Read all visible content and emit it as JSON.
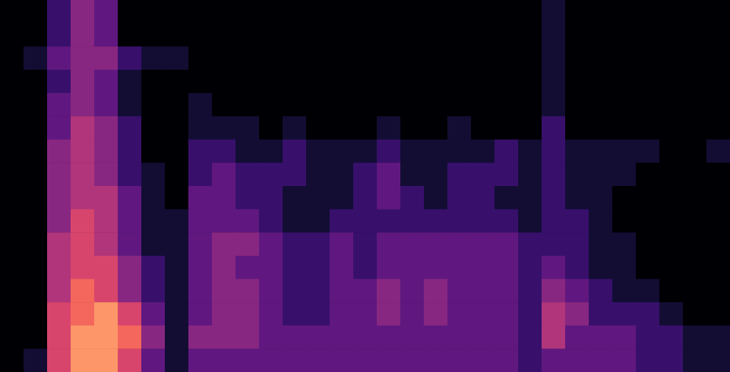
{
  "chart_data": {
    "type": "heatmap",
    "color": "magma",
    "tick_labels": false,
    "cells": [
      [
        0,
        0,
        2,
        4,
        3,
        0,
        0,
        0,
        0,
        0,
        0,
        0,
        0,
        0,
        0,
        0,
        0,
        0,
        0,
        0,
        0,
        0,
        0,
        1,
        0,
        0,
        0,
        0,
        0,
        0,
        0
      ],
      [
        0,
        0,
        2,
        4,
        3,
        0,
        0,
        0,
        0,
        0,
        0,
        0,
        0,
        0,
        0,
        0,
        0,
        0,
        0,
        0,
        0,
        0,
        0,
        1,
        0,
        0,
        0,
        0,
        0,
        0,
        0
      ],
      [
        0,
        1,
        3,
        4,
        4,
        2,
        1,
        1,
        0,
        0,
        0,
        0,
        0,
        0,
        0,
        0,
        0,
        0,
        0,
        0,
        0,
        0,
        0,
        1,
        0,
        0,
        0,
        0,
        0,
        0,
        0
      ],
      [
        0,
        0,
        2,
        4,
        3,
        1,
        0,
        0,
        0,
        0,
        0,
        0,
        0,
        0,
        0,
        0,
        0,
        0,
        0,
        0,
        0,
        0,
        0,
        1,
        0,
        0,
        0,
        0,
        0,
        0,
        0
      ],
      [
        0,
        0,
        3,
        4,
        3,
        1,
        0,
        0,
        1,
        0,
        0,
        0,
        0,
        0,
        0,
        0,
        0,
        0,
        0,
        0,
        0,
        0,
        0,
        1,
        0,
        0,
        0,
        0,
        0,
        0,
        0
      ],
      [
        0,
        0,
        3,
        5,
        4,
        2,
        0,
        0,
        1,
        1,
        1,
        0,
        1,
        0,
        0,
        0,
        1,
        0,
        0,
        1,
        0,
        0,
        0,
        2,
        0,
        0,
        0,
        0,
        0,
        0,
        0
      ],
      [
        0,
        0,
        4,
        5,
        4,
        2,
        0,
        0,
        2,
        2,
        1,
        1,
        2,
        1,
        1,
        1,
        2,
        1,
        1,
        1,
        1,
        2,
        1,
        2,
        1,
        1,
        1,
        1,
        0,
        0,
        1
      ],
      [
        0,
        0,
        4,
        5,
        4,
        2,
        1,
        0,
        2,
        3,
        2,
        2,
        2,
        1,
        1,
        2,
        3,
        1,
        1,
        2,
        2,
        2,
        1,
        2,
        1,
        1,
        1,
        0,
        0,
        0,
        0
      ],
      [
        0,
        0,
        4,
        5,
        5,
        3,
        1,
        0,
        3,
        3,
        2,
        2,
        1,
        1,
        1,
        2,
        3,
        2,
        1,
        2,
        2,
        1,
        1,
        2,
        1,
        1,
        0,
        0,
        0,
        0,
        0
      ],
      [
        0,
        0,
        4,
        6,
        5,
        3,
        1,
        1,
        3,
        3,
        3,
        2,
        1,
        1,
        2,
        2,
        2,
        2,
        2,
        2,
        2,
        2,
        1,
        2,
        2,
        1,
        0,
        0,
        0,
        0,
        0
      ],
      [
        0,
        0,
        5,
        6,
        5,
        3,
        1,
        1,
        3,
        4,
        4,
        3,
        2,
        2,
        3,
        2,
        3,
        3,
        3,
        3,
        3,
        3,
        2,
        2,
        2,
        1,
        1,
        0,
        0,
        0,
        0
      ],
      [
        0,
        0,
        5,
        6,
        6,
        4,
        2,
        1,
        3,
        4,
        3,
        3,
        2,
        2,
        3,
        2,
        3,
        3,
        3,
        3,
        3,
        3,
        2,
        3,
        2,
        1,
        1,
        0,
        0,
        0,
        0
      ],
      [
        0,
        0,
        5,
        7,
        6,
        4,
        2,
        1,
        3,
        4,
        4,
        3,
        2,
        2,
        3,
        3,
        4,
        3,
        4,
        3,
        3,
        3,
        2,
        4,
        3,
        2,
        1,
        1,
        0,
        0,
        0
      ],
      [
        0,
        0,
        6,
        7,
        8,
        6,
        3,
        1,
        3,
        4,
        4,
        3,
        2,
        2,
        3,
        3,
        4,
        3,
        4,
        3,
        3,
        3,
        2,
        5,
        4,
        2,
        2,
        2,
        1,
        0,
        0
      ],
      [
        0,
        0,
        6,
        8,
        8,
        7,
        4,
        1,
        4,
        4,
        4,
        3,
        3,
        3,
        3,
        3,
        3,
        3,
        3,
        3,
        3,
        3,
        2,
        5,
        3,
        3,
        3,
        2,
        2,
        1,
        1
      ],
      [
        0,
        1,
        6,
        8,
        8,
        6,
        3,
        1,
        3,
        3,
        3,
        3,
        3,
        3,
        3,
        3,
        3,
        3,
        3,
        3,
        3,
        3,
        2,
        3,
        3,
        3,
        3,
        2,
        2,
        1,
        1
      ]
    ]
  }
}
